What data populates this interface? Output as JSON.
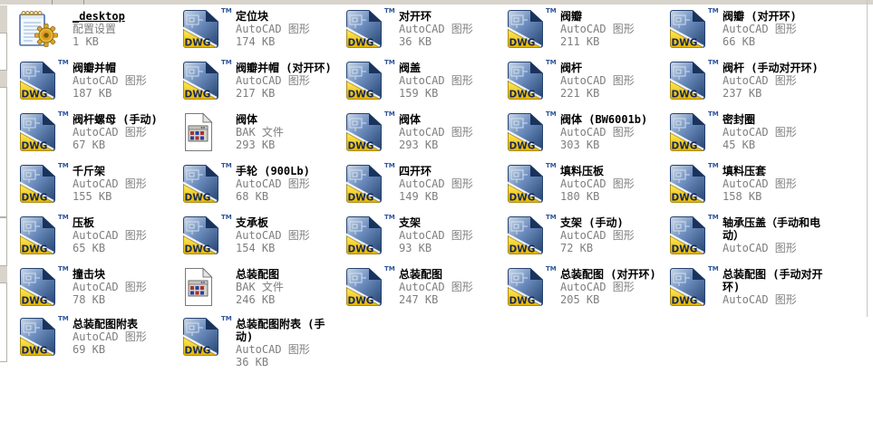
{
  "icons": {
    "dwg_badge": "DWG",
    "trademark": "TM"
  },
  "colors": {
    "dwg_yellow": "#f0c400",
    "icon_blue": "#30589c",
    "secondary_text_gray": "#7e7e7e",
    "chrome_gray": "#d8d4cc"
  },
  "files": [
    {
      "name": "_desktop",
      "type": "配置设置",
      "size": "1 KB",
      "icon": "config",
      "underlined": true
    },
    {
      "name": "定位块",
      "type": "AutoCAD 图形",
      "size": "174 KB",
      "icon": "dwg"
    },
    {
      "name": "对开环",
      "type": "AutoCAD 图形",
      "size": "36 KB",
      "icon": "dwg"
    },
    {
      "name": "阀瓣",
      "type": "AutoCAD 图形",
      "size": "211 KB",
      "icon": "dwg"
    },
    {
      "name": "阀瓣 (对开环)",
      "type": "AutoCAD 图形",
      "size": "66 KB",
      "icon": "dwg"
    },
    {
      "name": "阀瓣并帽",
      "type": "AutoCAD 图形",
      "size": "187 KB",
      "icon": "dwg"
    },
    {
      "name": "阀瓣并帽 (对开环)",
      "type": "AutoCAD 图形",
      "size": "217 KB",
      "icon": "dwg"
    },
    {
      "name": "阀盖",
      "type": "AutoCAD 图形",
      "size": "159 KB",
      "icon": "dwg"
    },
    {
      "name": "阀杆",
      "type": "AutoCAD 图形",
      "size": "221 KB",
      "icon": "dwg"
    },
    {
      "name": "阀杆 (手动对开环)",
      "type": "AutoCAD 图形",
      "size": "237 KB",
      "icon": "dwg"
    },
    {
      "name": "阀杆螺母 (手动)",
      "type": "AutoCAD 图形",
      "size": "67 KB",
      "icon": "dwg"
    },
    {
      "name": "阀体",
      "type": "BAK 文件",
      "size": "293 KB",
      "icon": "bak"
    },
    {
      "name": "阀体",
      "type": "AutoCAD 图形",
      "size": "293 KB",
      "icon": "dwg"
    },
    {
      "name": "阀体 (BW6001b)",
      "type": "AutoCAD 图形",
      "size": "303 KB",
      "icon": "dwg"
    },
    {
      "name": "密封圈",
      "type": "AutoCAD 图形",
      "size": "45 KB",
      "icon": "dwg"
    },
    {
      "name": "千斤架",
      "type": "AutoCAD 图形",
      "size": "155 KB",
      "icon": "dwg"
    },
    {
      "name": "手轮 (900Lb)",
      "type": "AutoCAD 图形",
      "size": "68 KB",
      "icon": "dwg"
    },
    {
      "name": "四开环",
      "type": "AutoCAD 图形",
      "size": "149 KB",
      "icon": "dwg"
    },
    {
      "name": "填料压板",
      "type": "AutoCAD 图形",
      "size": "180 KB",
      "icon": "dwg"
    },
    {
      "name": "填料压套",
      "type": "AutoCAD 图形",
      "size": "158 KB",
      "icon": "dwg"
    },
    {
      "name": "压板",
      "type": "AutoCAD 图形",
      "size": "65 KB",
      "icon": "dwg"
    },
    {
      "name": "支承板",
      "type": "AutoCAD 图形",
      "size": "154 KB",
      "icon": "dwg"
    },
    {
      "name": "支架",
      "type": "AutoCAD 图形",
      "size": "93 KB",
      "icon": "dwg"
    },
    {
      "name": "支架 (手动)",
      "type": "AutoCAD 图形",
      "size": "72 KB",
      "icon": "dwg"
    },
    {
      "name": "轴承压盖（手动和电动）",
      "type": "AutoCAD 图形",
      "size": "",
      "icon": "dwg"
    },
    {
      "name": "撞击块",
      "type": "AutoCAD 图形",
      "size": "78 KB",
      "icon": "dwg"
    },
    {
      "name": "总装配图",
      "type": "BAK 文件",
      "size": "246 KB",
      "icon": "bak"
    },
    {
      "name": "总装配图",
      "type": "AutoCAD 图形",
      "size": "247 KB",
      "icon": "dwg"
    },
    {
      "name": "总装配图 (对开环)",
      "type": "AutoCAD 图形",
      "size": "205 KB",
      "icon": "dwg"
    },
    {
      "name": "总装配图 (手动对开环)",
      "type": "AutoCAD 图形",
      "size": "",
      "icon": "dwg"
    },
    {
      "name": "总装配图附表",
      "type": "AutoCAD 图形",
      "size": "69 KB",
      "icon": "dwg"
    },
    {
      "name": "总装配图附表 (手动)",
      "type": "AutoCAD 图形",
      "size": "36 KB",
      "icon": "dwg"
    }
  ]
}
